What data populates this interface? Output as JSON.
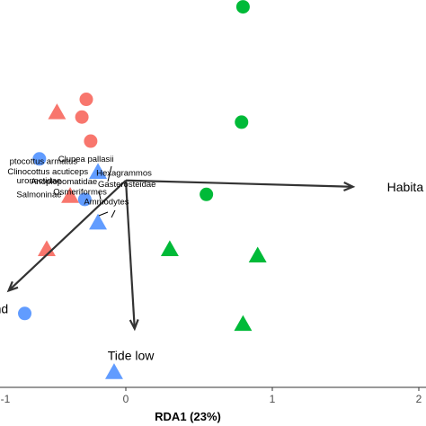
{
  "chart_data": {
    "type": "scatter",
    "xlabel": "RDA1 (23%)",
    "x_ticks": [
      {
        "value": -1,
        "label": "-1"
      },
      {
        "value": 0,
        "label": "0"
      },
      {
        "value": 1,
        "label": "1"
      },
      {
        "value": 2,
        "label": "2"
      }
    ],
    "xlim": [
      -1.6,
      2.2
    ],
    "ylim": [
      -1.8,
      1.6
    ],
    "grid": false,
    "colors": {
      "red": "#F8766D",
      "blue": "#619CFF",
      "green": "#00BA38",
      "vector": "#333333"
    },
    "series": [
      {
        "color": "#F8766D",
        "points": [
          {
            "x": -0.47,
            "y": 0.79,
            "shape": "triangle"
          },
          {
            "x": -0.27,
            "y": 0.89,
            "shape": "circle"
          },
          {
            "x": -0.3,
            "y": 0.75,
            "shape": "circle"
          },
          {
            "x": -0.24,
            "y": 0.56,
            "shape": "circle"
          },
          {
            "x": -0.38,
            "y": 0.13,
            "shape": "triangle"
          },
          {
            "x": -0.54,
            "y": -0.29,
            "shape": "triangle"
          }
        ]
      },
      {
        "color": "#619CFF",
        "points": [
          {
            "x": -0.59,
            "y": 0.42,
            "shape": "circle"
          },
          {
            "x": -0.19,
            "y": 0.32,
            "shape": "triangle"
          },
          {
            "x": -0.28,
            "y": 0.1,
            "shape": "circle"
          },
          {
            "x": -0.19,
            "y": -0.08,
            "shape": "triangle"
          },
          {
            "x": -0.69,
            "y": -0.8,
            "shape": "circle"
          },
          {
            "x": -0.08,
            "y": -1.26,
            "shape": "triangle"
          }
        ]
      },
      {
        "color": "#00BA38",
        "points": [
          {
            "x": 0.8,
            "y": 1.62,
            "shape": "circle"
          },
          {
            "x": 0.79,
            "y": 0.71,
            "shape": "circle"
          },
          {
            "x": 0.55,
            "y": 0.14,
            "shape": "circle"
          },
          {
            "x": 0.3,
            "y": -0.29,
            "shape": "triangle"
          },
          {
            "x": 0.9,
            "y": -0.34,
            "shape": "triangle"
          },
          {
            "x": 0.8,
            "y": -0.88,
            "shape": "triangle"
          }
        ]
      }
    ],
    "vectors": [
      {
        "label": "Habita",
        "x": 1.55,
        "y": 0.2
      },
      {
        "label": "nd",
        "x": -0.8,
        "y": -0.62
      },
      {
        "label": "Tide low",
        "x": 0.06,
        "y": -0.92
      }
    ],
    "vector_origin": {
      "x": 0.0,
      "y": 0.25
    },
    "species": [
      {
        "label": "ptocottus armatus",
        "x": -0.55,
        "y": 0.4
      },
      {
        "label": "Clupea pallasii",
        "x": -0.26,
        "y": 0.42
      },
      {
        "label": "Clinocottus acuticeps",
        "x": -0.52,
        "y": 0.32
      },
      {
        "label": "Hexagrammos",
        "x": 0.0,
        "y": 0.31
      },
      {
        "label": "uronectidae",
        "x": -0.58,
        "y": 0.25
      },
      {
        "label": "Anoplopomatidae",
        "x": -0.41,
        "y": 0.24
      },
      {
        "label": "Gasterosteidae",
        "x": 0.02,
        "y": 0.22
      },
      {
        "label": "Salmoninae",
        "x": -0.58,
        "y": 0.14
      },
      {
        "label": "Osmeriformes",
        "x": -0.3,
        "y": 0.16
      },
      {
        "label": "Ammodytes",
        "x": -0.12,
        "y": 0.08
      }
    ]
  }
}
